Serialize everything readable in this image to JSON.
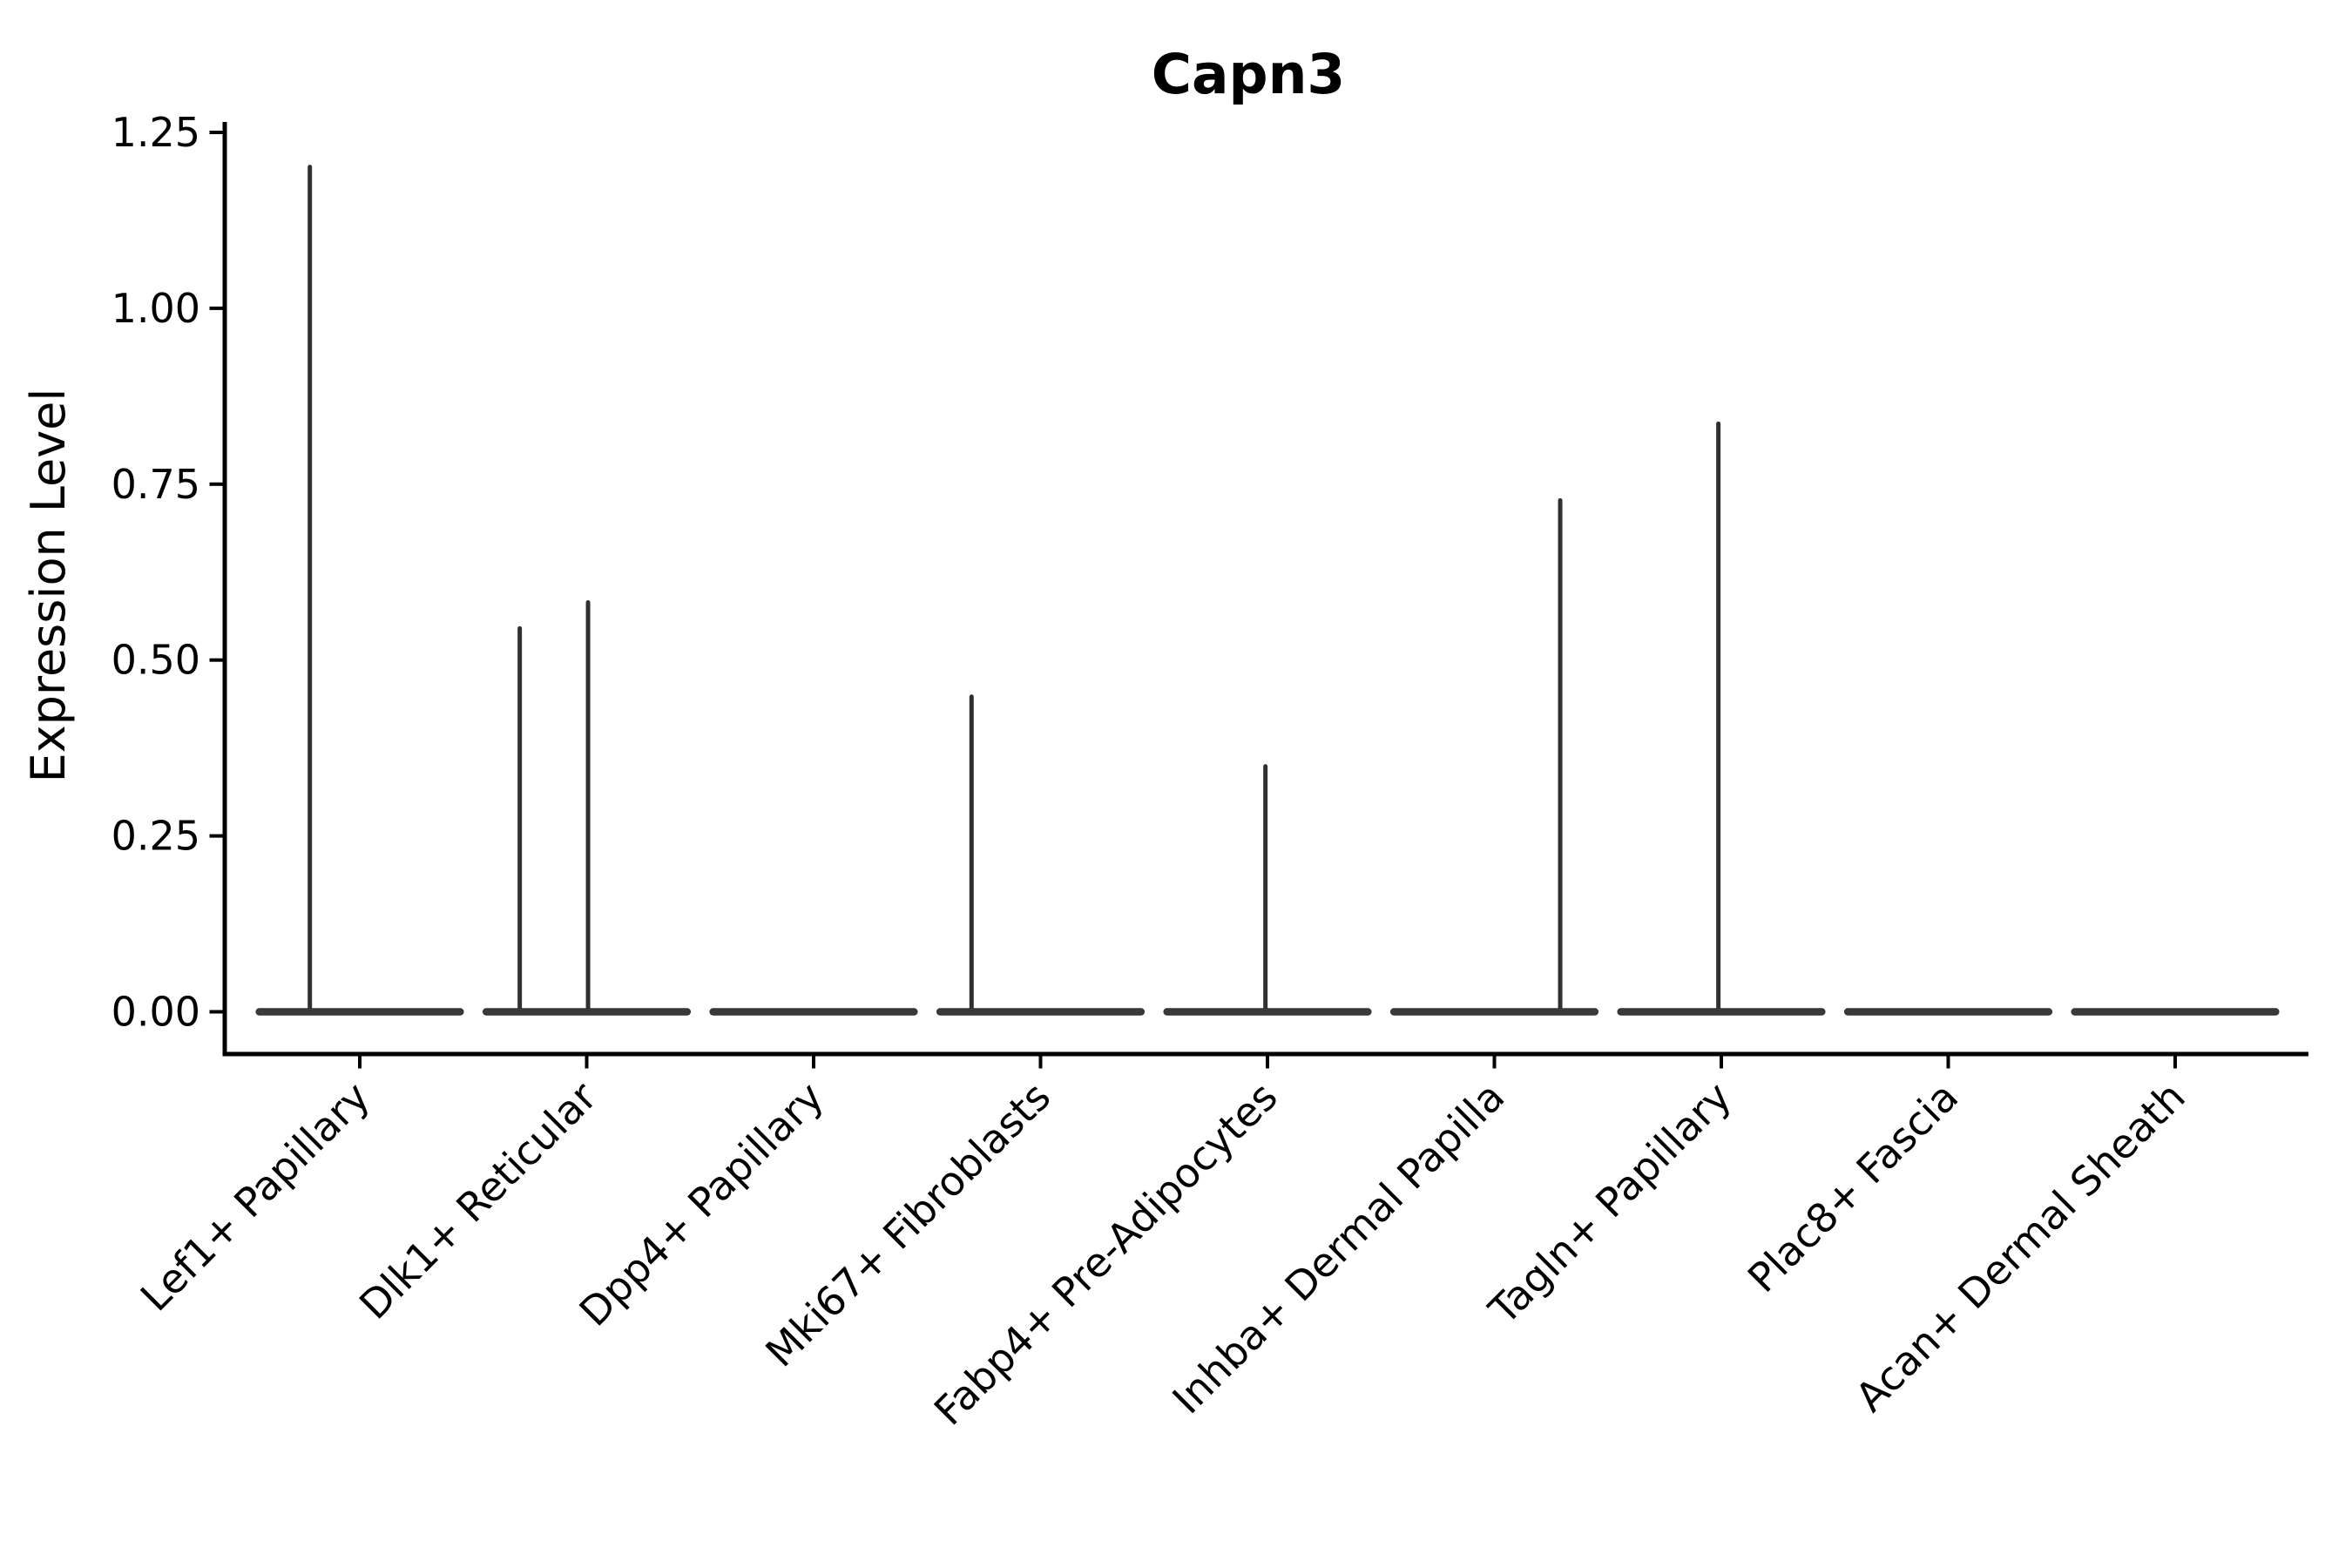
{
  "figure": {
    "title": "Capn3",
    "y_axis_label": "Expression Level"
  },
  "chart_data": {
    "type": "violin",
    "title": "Capn3",
    "xlabel": "",
    "ylabel": "Expression Level",
    "grid": false,
    "legend": "none",
    "ylim": [
      0,
      1.265
    ],
    "y_tick_values": [
      0,
      0.25,
      0.5,
      0.75,
      1.0,
      1.25
    ],
    "y_tick_labels": [
      "0.00",
      "0.25",
      "0.50",
      "0.75",
      "1.00",
      "1.25"
    ],
    "categories": [
      "Lef1+ Papillary",
      "Dlk1+ Reticular",
      "Dpp4+ Papillary",
      "Mki67+ Fibroblasts",
      "Fabp4+ Pre-Adipocytes",
      "Inhba+ Dermal Papilla",
      "Tagln+ Papillary",
      "Plac8+ Fascia",
      "Acan+ Dermal Sheath"
    ],
    "violins": [
      {
        "category": "Lef1+ Papillary",
        "baseline_value": 0,
        "spikes": [
          {
            "max": 1.204,
            "offset_frac": -0.22
          }
        ]
      },
      {
        "category": "Dlk1+ Reticular",
        "baseline_value": 0,
        "spikes": [
          {
            "max": 0.548,
            "offset_frac": -0.295
          },
          {
            "max": 0.585,
            "offset_frac": 0.006
          }
        ]
      },
      {
        "category": "Dpp4+ Papillary",
        "baseline_value": 0,
        "spikes": []
      },
      {
        "category": "Mki67+ Fibroblasts",
        "baseline_value": 0,
        "spikes": [
          {
            "max": 0.451,
            "offset_frac": -0.304
          }
        ]
      },
      {
        "category": "Fabp4+ Pre-Adipocytes",
        "baseline_value": 0,
        "spikes": [
          {
            "max": 0.352,
            "offset_frac": -0.009
          }
        ]
      },
      {
        "category": "Inhba+ Dermal Papilla",
        "baseline_value": 0,
        "spikes": [
          {
            "max": 0.73,
            "offset_frac": 0.29
          }
        ]
      },
      {
        "category": "Tagln+ Papillary",
        "baseline_value": 0,
        "spikes": [
          {
            "max": 0.839,
            "offset_frac": -0.013
          }
        ]
      },
      {
        "category": "Plac8+ Fascia",
        "baseline_value": 0,
        "spikes": []
      },
      {
        "category": "Acan+ Dermal Sheath",
        "baseline_value": 0,
        "spikes": []
      }
    ],
    "colors": {
      "violin_fill": "#3a3a3a",
      "violin_edge": "#303030",
      "axis": "#000000",
      "background": "#ffffff"
    }
  }
}
